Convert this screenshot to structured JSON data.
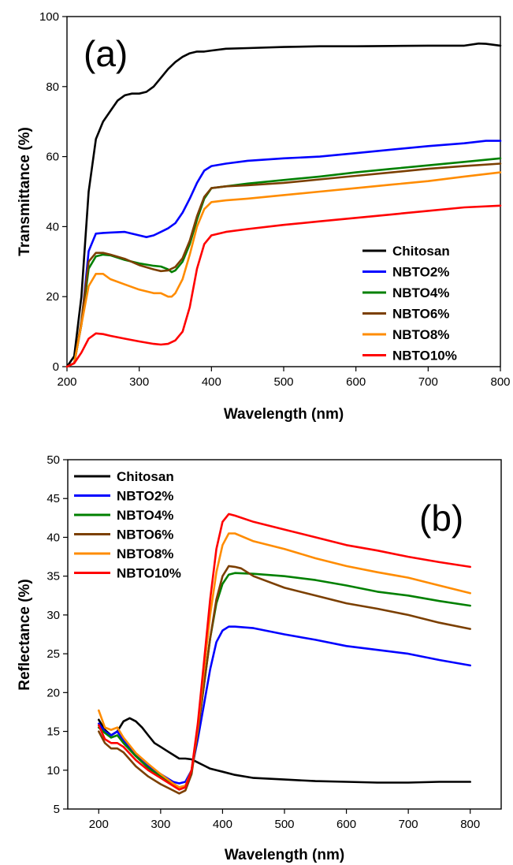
{
  "chart_data": [
    {
      "type": "line",
      "panel_label": "(a)",
      "xlabel": "Wavelength (nm)",
      "ylabel": "Transmittance (%)",
      "xlim": [
        200,
        800
      ],
      "ylim": [
        0,
        100
      ],
      "xticks": [
        200,
        300,
        400,
        500,
        600,
        700,
        800
      ],
      "yticks": [
        0,
        20,
        40,
        60,
        80,
        100
      ],
      "grid": false,
      "legend_position": "bottom-right",
      "series": [
        {
          "name": "Chitosan",
          "color": "#000000",
          "x": [
            200,
            210,
            220,
            230,
            240,
            250,
            260,
            270,
            280,
            290,
            300,
            310,
            320,
            330,
            340,
            350,
            360,
            370,
            380,
            390,
            400,
            420,
            450,
            500,
            550,
            600,
            650,
            700,
            750,
            770,
            780,
            800
          ],
          "y": [
            0,
            3,
            20,
            50,
            65,
            70,
            73,
            76,
            77.5,
            78,
            78,
            78.5,
            80,
            82.5,
            85,
            87,
            88.5,
            89.5,
            90,
            90,
            90.3,
            90.8,
            91,
            91.3,
            91.5,
            91.5,
            91.6,
            91.7,
            91.7,
            92.3,
            92.2,
            91.7
          ]
        },
        {
          "name": "NBTO2%",
          "color": "#0000ff",
          "x": [
            200,
            210,
            220,
            230,
            240,
            250,
            260,
            280,
            300,
            310,
            320,
            330,
            340,
            350,
            360,
            370,
            380,
            390,
            400,
            420,
            450,
            500,
            550,
            600,
            650,
            700,
            750,
            780,
            800
          ],
          "y": [
            0,
            1,
            12,
            33,
            38,
            38.2,
            38.3,
            38.5,
            37.5,
            37,
            37.5,
            38.5,
            39.5,
            41,
            44,
            48,
            52.5,
            56,
            57.3,
            58,
            58.8,
            59.5,
            60,
            61,
            62,
            63,
            63.8,
            64.5,
            64.5
          ]
        },
        {
          "name": "NBTO4%",
          "color": "#008000",
          "x": [
            200,
            210,
            220,
            230,
            240,
            250,
            260,
            280,
            300,
            320,
            330,
            340,
            345,
            350,
            360,
            370,
            380,
            390,
            400,
            420,
            450,
            500,
            550,
            600,
            650,
            700,
            750,
            800
          ],
          "y": [
            0,
            1,
            12,
            28,
            31.5,
            32,
            31.8,
            30.5,
            29.5,
            28.8,
            28.6,
            27.8,
            27,
            27.5,
            30,
            35,
            42,
            48,
            51,
            51.5,
            52.3,
            53.3,
            54.3,
            55.5,
            56.5,
            57.5,
            58.5,
            59.5
          ]
        },
        {
          "name": "NBTO6%",
          "color": "#7b3f00",
          "x": [
            200,
            210,
            220,
            230,
            240,
            250,
            260,
            280,
            300,
            320,
            330,
            340,
            350,
            360,
            370,
            380,
            390,
            400,
            420,
            450,
            500,
            550,
            600,
            650,
            700,
            750,
            800
          ],
          "y": [
            0,
            1,
            13,
            30,
            32.5,
            32.5,
            32,
            30.8,
            29,
            27.8,
            27.3,
            27.5,
            28.5,
            31,
            36,
            43,
            48.5,
            51,
            51.5,
            51.8,
            52.5,
            53.5,
            54.5,
            55.5,
            56.5,
            57.3,
            58
          ]
        },
        {
          "name": "NBTO8%",
          "color": "#ff8c00",
          "x": [
            200,
            210,
            220,
            230,
            240,
            250,
            260,
            280,
            300,
            320,
            330,
            340,
            345,
            350,
            360,
            370,
            380,
            390,
            400,
            420,
            450,
            500,
            550,
            600,
            650,
            700,
            750,
            800
          ],
          "y": [
            0,
            1,
            12,
            23,
            26.5,
            26.5,
            25,
            23.5,
            22,
            21,
            21,
            20,
            20,
            21,
            25,
            32,
            40,
            45,
            47,
            47.5,
            48,
            49,
            50,
            51,
            52,
            53,
            54.3,
            55.5
          ]
        },
        {
          "name": "NBTO10%",
          "color": "#ff0000",
          "x": [
            200,
            210,
            220,
            230,
            240,
            250,
            260,
            280,
            300,
            320,
            330,
            340,
            350,
            360,
            370,
            380,
            390,
            400,
            420,
            450,
            500,
            550,
            600,
            650,
            700,
            750,
            800
          ],
          "y": [
            0,
            1,
            4,
            8,
            9.5,
            9.3,
            8.8,
            8,
            7.2,
            6.5,
            6.3,
            6.5,
            7.5,
            10,
            17,
            28,
            35,
            37.5,
            38.5,
            39.3,
            40.5,
            41.5,
            42.5,
            43.5,
            44.5,
            45.5,
            46
          ]
        }
      ]
    },
    {
      "type": "line",
      "panel_label": "(b)",
      "xlabel": "Wavelength (nm)",
      "ylabel": "Reflectance (%)",
      "xlim": [
        150,
        850
      ],
      "ylim": [
        5,
        50
      ],
      "xticks": [
        200,
        300,
        400,
        500,
        600,
        700,
        800
      ],
      "yticks": [
        5,
        10,
        15,
        20,
        25,
        30,
        35,
        40,
        45,
        50
      ],
      "grid": false,
      "legend_position": "top-left",
      "series": [
        {
          "name": "Chitosan",
          "color": "#000000",
          "x": [
            200,
            210,
            220,
            230,
            240,
            250,
            260,
            270,
            280,
            290,
            300,
            310,
            320,
            330,
            340,
            350,
            360,
            370,
            380,
            390,
            400,
            420,
            450,
            500,
            550,
            600,
            650,
            700,
            750,
            800
          ],
          "y": [
            16.5,
            15.2,
            14.5,
            15,
            16.3,
            16.7,
            16.3,
            15.5,
            14.5,
            13.5,
            13,
            12.5,
            12,
            11.5,
            11.5,
            11.4,
            11,
            10.6,
            10.2,
            10,
            9.8,
            9.4,
            9,
            8.8,
            8.6,
            8.5,
            8.4,
            8.4,
            8.5,
            8.5
          ]
        },
        {
          "name": "NBTO2%",
          "color": "#0000ff",
          "x": [
            200,
            210,
            220,
            230,
            240,
            260,
            280,
            300,
            320,
            330,
            340,
            350,
            360,
            370,
            380,
            390,
            400,
            410,
            420,
            450,
            500,
            550,
            600,
            650,
            700,
            750,
            800
          ],
          "y": [
            16,
            15,
            14.5,
            15,
            13.8,
            12,
            10.5,
            9.5,
            8.5,
            8.3,
            8.5,
            10,
            14,
            18.5,
            23,
            26.5,
            28,
            28.5,
            28.5,
            28.3,
            27.5,
            26.8,
            26,
            25.5,
            25,
            24.2,
            23.5
          ]
        },
        {
          "name": "NBTO4%",
          "color": "#008000",
          "x": [
            200,
            210,
            220,
            230,
            240,
            260,
            280,
            300,
            320,
            330,
            340,
            350,
            360,
            370,
            380,
            390,
            400,
            410,
            420,
            450,
            500,
            550,
            600,
            650,
            700,
            750,
            800
          ],
          "y": [
            15.5,
            14.8,
            14.2,
            14.5,
            13.5,
            11.8,
            10.3,
            9.2,
            8.2,
            7.8,
            8,
            10,
            15,
            21,
            27,
            31.5,
            34,
            35.2,
            35.4,
            35.3,
            35,
            34.5,
            33.8,
            33,
            32.5,
            31.8,
            31.2
          ]
        },
        {
          "name": "NBTO6%",
          "color": "#7b3f00",
          "x": [
            200,
            210,
            220,
            230,
            240,
            260,
            280,
            300,
            320,
            330,
            340,
            350,
            360,
            370,
            380,
            390,
            400,
            410,
            420,
            430,
            450,
            500,
            550,
            600,
            650,
            700,
            750,
            800
          ],
          "y": [
            15,
            13.5,
            12.8,
            12.8,
            12.3,
            10.5,
            9.2,
            8.2,
            7.4,
            7,
            7.4,
            9.5,
            15,
            21,
            27,
            32,
            35,
            36.3,
            36.2,
            36,
            35,
            33.5,
            32.5,
            31.5,
            30.8,
            30,
            29,
            28.2
          ]
        },
        {
          "name": "NBTO8%",
          "color": "#ff8c00",
          "x": [
            200,
            210,
            220,
            230,
            240,
            260,
            280,
            300,
            320,
            330,
            340,
            350,
            360,
            370,
            380,
            390,
            400,
            410,
            420,
            450,
            500,
            550,
            600,
            650,
            700,
            750,
            800
          ],
          "y": [
            17.7,
            15.5,
            15.2,
            15.5,
            14.2,
            12.2,
            10.8,
            9.5,
            8.3,
            7.8,
            8,
            10,
            15.5,
            23,
            30,
            35.5,
            39,
            40.5,
            40.5,
            39.5,
            38.5,
            37.3,
            36.3,
            35.5,
            34.8,
            33.8,
            32.8
          ]
        },
        {
          "name": "NBTO10%",
          "color": "#ff0000",
          "x": [
            200,
            210,
            220,
            230,
            240,
            260,
            280,
            300,
            320,
            330,
            340,
            350,
            360,
            370,
            380,
            390,
            400,
            410,
            420,
            450,
            500,
            550,
            600,
            650,
            700,
            750,
            800
          ],
          "y": [
            15.8,
            14,
            13.5,
            13.5,
            13,
            11.3,
            10,
            9,
            8,
            7.5,
            7.8,
            10,
            16,
            24,
            32,
            38.5,
            42,
            43,
            42.8,
            42,
            41,
            40,
            39,
            38.3,
            37.5,
            36.8,
            36.2
          ]
        }
      ]
    }
  ]
}
